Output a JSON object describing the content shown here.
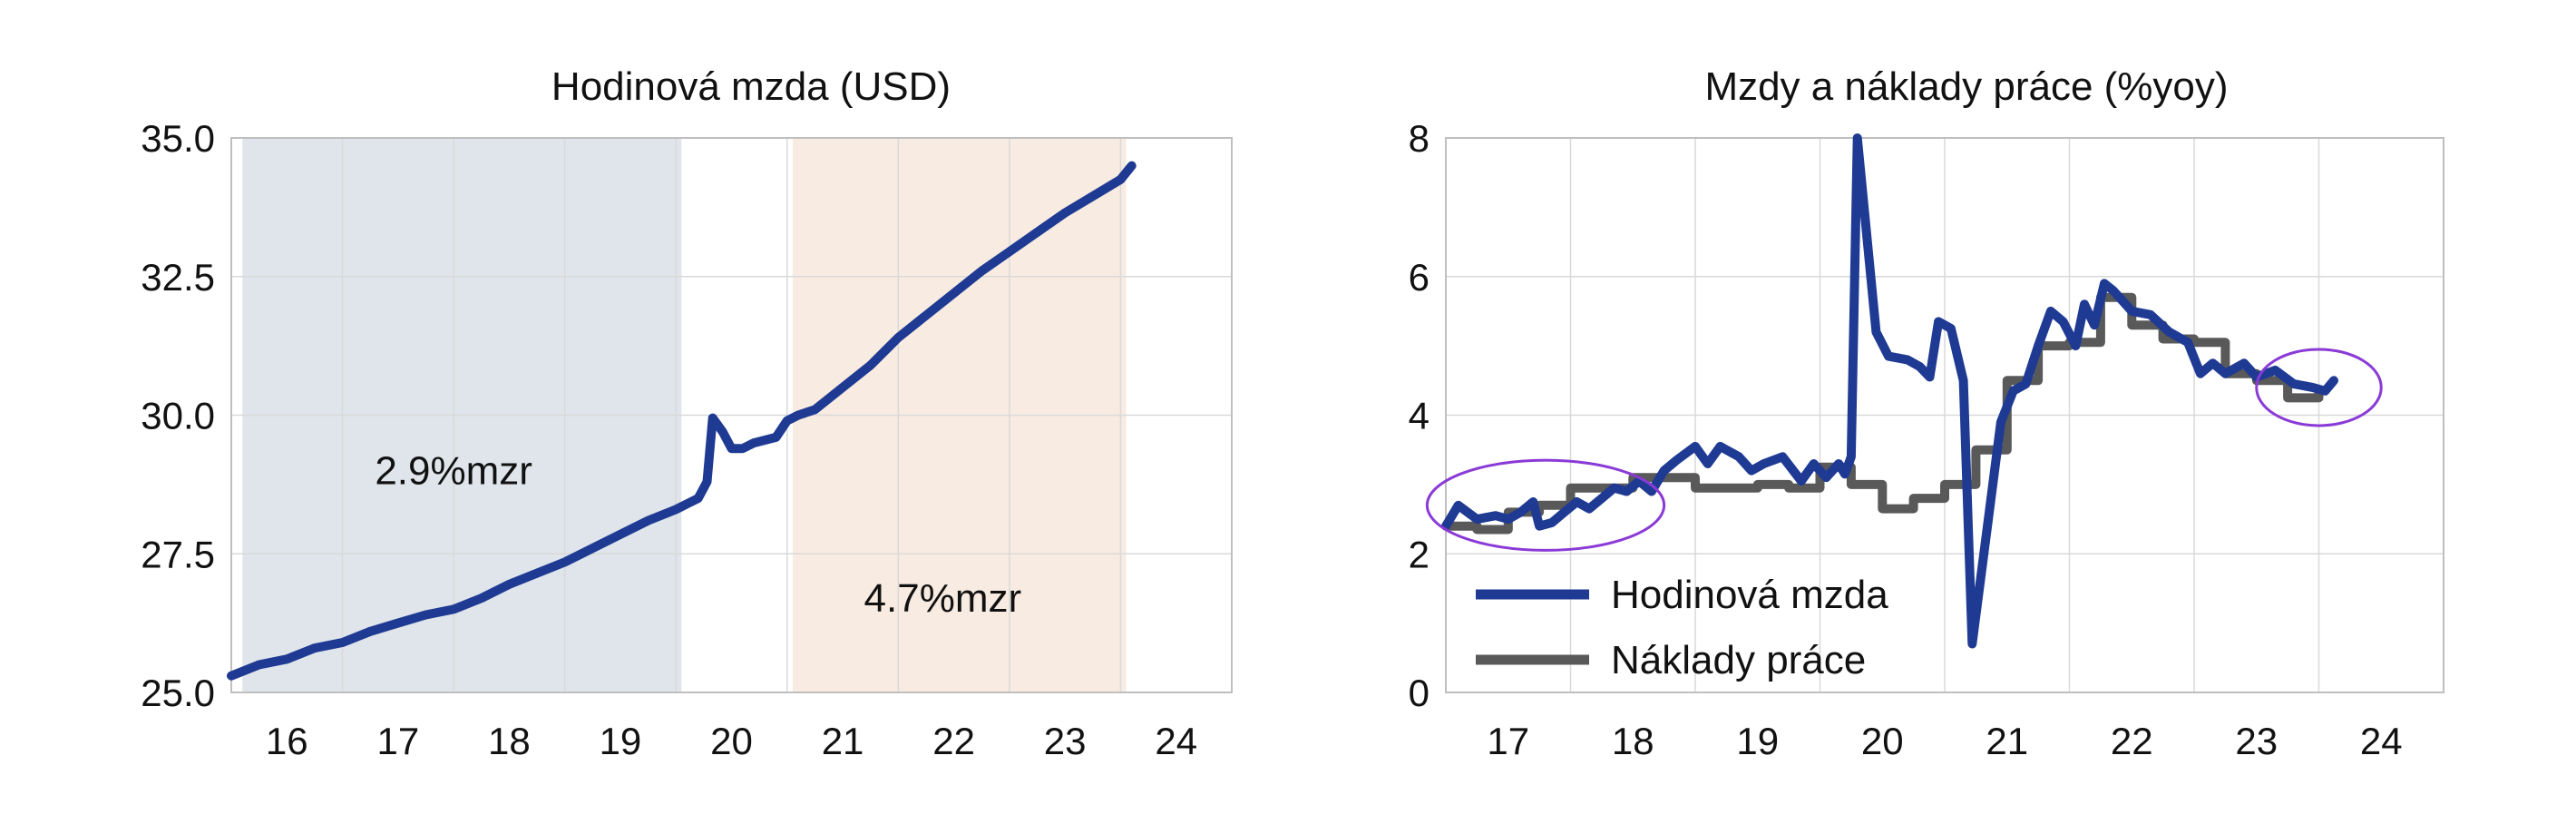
{
  "chart_data": [
    {
      "type": "line",
      "title": "Hodinová mzda (USD)",
      "xlabel": "",
      "ylabel": "",
      "xlim": [
        2015.5,
        2024.5
      ],
      "ylim": [
        25.0,
        35.0
      ],
      "yticks": [
        "25.0",
        "27.5",
        "30.0",
        "32.5",
        "35.0"
      ],
      "xticks": [
        {
          "label": "16",
          "x": 2016
        },
        {
          "label": "17",
          "x": 2017
        },
        {
          "label": "18",
          "x": 2018
        },
        {
          "label": "19",
          "x": 2019
        },
        {
          "label": "20",
          "x": 2020
        },
        {
          "label": "21",
          "x": 2021
        },
        {
          "label": "22",
          "x": 2022
        },
        {
          "label": "23",
          "x": 2023
        },
        {
          "label": "24",
          "x": 2024
        }
      ],
      "grid": true,
      "shaded_regions": [
        {
          "x0": 2015.6,
          "x1": 2019.55,
          "color": "#dfe5eb",
          "label": "2.9%mzr",
          "label_x": 2017.5,
          "label_y": 29.0
        },
        {
          "x0": 2020.55,
          "x1": 2023.55,
          "color": "#f8ebe1",
          "label": "4.7%mzr",
          "label_x": 2021.9,
          "label_y": 26.7
        }
      ],
      "series": [
        {
          "color": "#1f3a93",
          "points": [
            [
              2015.5,
              25.3
            ],
            [
              2015.75,
              25.5
            ],
            [
              2016.0,
              25.6
            ],
            [
              2016.25,
              25.8
            ],
            [
              2016.5,
              25.9
            ],
            [
              2016.75,
              26.1
            ],
            [
              2017.0,
              26.25
            ],
            [
              2017.25,
              26.4
            ],
            [
              2017.5,
              26.5
            ],
            [
              2017.75,
              26.7
            ],
            [
              2018.0,
              26.95
            ],
            [
              2018.25,
              27.15
            ],
            [
              2018.5,
              27.35
            ],
            [
              2018.75,
              27.6
            ],
            [
              2019.0,
              27.85
            ],
            [
              2019.25,
              28.1
            ],
            [
              2019.5,
              28.3
            ],
            [
              2019.7,
              28.5
            ],
            [
              2019.78,
              28.8
            ],
            [
              2019.83,
              29.95
            ],
            [
              2019.92,
              29.7
            ],
            [
              2020.0,
              29.4
            ],
            [
              2020.1,
              29.4
            ],
            [
              2020.2,
              29.5
            ],
            [
              2020.4,
              29.6
            ],
            [
              2020.5,
              29.9
            ],
            [
              2020.6,
              30.0
            ],
            [
              2020.75,
              30.1
            ],
            [
              2021.0,
              30.5
            ],
            [
              2021.25,
              30.9
            ],
            [
              2021.5,
              31.4
            ],
            [
              2021.75,
              31.8
            ],
            [
              2022.0,
              32.2
            ],
            [
              2022.25,
              32.6
            ],
            [
              2022.5,
              32.95
            ],
            [
              2022.75,
              33.3
            ],
            [
              2023.0,
              33.65
            ],
            [
              2023.25,
              33.95
            ],
            [
              2023.5,
              34.25
            ],
            [
              2023.6,
              34.5
            ]
          ]
        }
      ]
    },
    {
      "type": "line",
      "title": "Mzdy a náklady práce (%yoy)",
      "xlabel": "",
      "ylabel": "",
      "xlim": [
        2016.5,
        2024.5
      ],
      "ylim": [
        0,
        8
      ],
      "yticks": [
        "0",
        "2",
        "4",
        "6",
        "8"
      ],
      "xticks": [
        {
          "label": "17",
          "x": 2017
        },
        {
          "label": "18",
          "x": 2018
        },
        {
          "label": "19",
          "x": 2019
        },
        {
          "label": "20",
          "x": 2020
        },
        {
          "label": "21",
          "x": 2021
        },
        {
          "label": "22",
          "x": 2022
        },
        {
          "label": "23",
          "x": 2023
        },
        {
          "label": "24",
          "x": 2024
        }
      ],
      "grid": true,
      "legend_placement": "bottom-left",
      "highlights": [
        {
          "shape": "ellipse",
          "cx": 2017.3,
          "cy": 2.7,
          "rx": 0.95,
          "ry": 0.65,
          "color": "#8a3ad6"
        },
        {
          "shape": "ellipse",
          "cx": 2023.5,
          "cy": 4.4,
          "rx": 0.5,
          "ry": 0.55,
          "color": "#8a3ad6"
        }
      ],
      "series": [
        {
          "name": "Hodinová mzda",
          "color": "#1f3a93",
          "points": [
            [
              2016.5,
              2.4
            ],
            [
              2016.6,
              2.7
            ],
            [
              2016.75,
              2.5
            ],
            [
              2016.9,
              2.55
            ],
            [
              2017.0,
              2.5
            ],
            [
              2017.1,
              2.6
            ],
            [
              2017.2,
              2.75
            ],
            [
              2017.25,
              2.4
            ],
            [
              2017.35,
              2.45
            ],
            [
              2017.45,
              2.6
            ],
            [
              2017.55,
              2.75
            ],
            [
              2017.65,
              2.65
            ],
            [
              2017.75,
              2.8
            ],
            [
              2017.85,
              2.95
            ],
            [
              2017.95,
              2.9
            ],
            [
              2018.05,
              3.05
            ],
            [
              2018.15,
              2.9
            ],
            [
              2018.25,
              3.2
            ],
            [
              2018.35,
              3.35
            ],
            [
              2018.5,
              3.55
            ],
            [
              2018.6,
              3.3
            ],
            [
              2018.7,
              3.55
            ],
            [
              2018.85,
              3.4
            ],
            [
              2018.95,
              3.2
            ],
            [
              2019.05,
              3.3
            ],
            [
              2019.2,
              3.4
            ],
            [
              2019.35,
              3.05
            ],
            [
              2019.45,
              3.3
            ],
            [
              2019.55,
              3.1
            ],
            [
              2019.65,
              3.3
            ],
            [
              2019.7,
              3.15
            ],
            [
              2019.75,
              3.4
            ],
            [
              2019.8,
              8.0
            ],
            [
              2019.88,
              6.5
            ],
            [
              2019.95,
              5.2
            ],
            [
              2020.05,
              4.85
            ],
            [
              2020.2,
              4.8
            ],
            [
              2020.3,
              4.7
            ],
            [
              2020.38,
              4.55
            ],
            [
              2020.45,
              5.35
            ],
            [
              2020.55,
              5.25
            ],
            [
              2020.65,
              4.5
            ],
            [
              2020.72,
              0.7
            ],
            [
              2020.85,
              2.5
            ],
            [
              2020.95,
              3.9
            ],
            [
              2021.05,
              4.35
            ],
            [
              2021.15,
              4.45
            ],
            [
              2021.25,
              5.0
            ],
            [
              2021.35,
              5.5
            ],
            [
              2021.45,
              5.35
            ],
            [
              2021.55,
              5.0
            ],
            [
              2021.62,
              5.6
            ],
            [
              2021.7,
              5.3
            ],
            [
              2021.78,
              5.9
            ],
            [
              2021.85,
              5.8
            ],
            [
              2022.0,
              5.5
            ],
            [
              2022.15,
              5.45
            ],
            [
              2022.3,
              5.2
            ],
            [
              2022.45,
              5.05
            ],
            [
              2022.55,
              4.6
            ],
            [
              2022.65,
              4.75
            ],
            [
              2022.75,
              4.6
            ],
            [
              2022.9,
              4.75
            ],
            [
              2023.0,
              4.55
            ],
            [
              2023.15,
              4.65
            ],
            [
              2023.3,
              4.45
            ],
            [
              2023.45,
              4.4
            ],
            [
              2023.55,
              4.35
            ],
            [
              2023.62,
              4.5
            ]
          ]
        },
        {
          "name": "Náklady práce",
          "color": "#595959",
          "points": [
            [
              2016.5,
              2.4
            ],
            [
              2016.75,
              2.4
            ],
            [
              2016.75,
              2.35
            ],
            [
              2017.0,
              2.35
            ],
            [
              2017.0,
              2.6
            ],
            [
              2017.25,
              2.6
            ],
            [
              2017.25,
              2.7
            ],
            [
              2017.5,
              2.7
            ],
            [
              2017.5,
              2.95
            ],
            [
              2017.75,
              2.95
            ],
            [
              2017.75,
              2.95
            ],
            [
              2018.0,
              2.95
            ],
            [
              2018.0,
              3.1
            ],
            [
              2018.25,
              3.1
            ],
            [
              2018.25,
              3.1
            ],
            [
              2018.5,
              3.1
            ],
            [
              2018.5,
              2.95
            ],
            [
              2018.75,
              2.95
            ],
            [
              2018.75,
              2.95
            ],
            [
              2019.0,
              2.95
            ],
            [
              2019.0,
              3.0
            ],
            [
              2019.25,
              3.0
            ],
            [
              2019.25,
              2.95
            ],
            [
              2019.5,
              2.95
            ],
            [
              2019.5,
              3.25
            ],
            [
              2019.75,
              3.25
            ],
            [
              2019.75,
              3.0
            ],
            [
              2020.0,
              3.0
            ],
            [
              2020.0,
              2.65
            ],
            [
              2020.25,
              2.65
            ],
            [
              2020.25,
              2.8
            ],
            [
              2020.5,
              2.8
            ],
            [
              2020.5,
              3.0
            ],
            [
              2020.75,
              3.0
            ],
            [
              2020.75,
              3.5
            ],
            [
              2021.0,
              3.5
            ],
            [
              2021.0,
              4.5
            ],
            [
              2021.25,
              4.5
            ],
            [
              2021.25,
              5.0
            ],
            [
              2021.5,
              5.0
            ],
            [
              2021.5,
              5.05
            ],
            [
              2021.75,
              5.05
            ],
            [
              2021.75,
              5.7
            ],
            [
              2022.0,
              5.7
            ],
            [
              2022.0,
              5.3
            ],
            [
              2022.25,
              5.3
            ],
            [
              2022.25,
              5.1
            ],
            [
              2022.5,
              5.1
            ],
            [
              2022.5,
              5.05
            ],
            [
              2022.75,
              5.05
            ],
            [
              2022.75,
              4.6
            ],
            [
              2023.0,
              4.6
            ],
            [
              2023.0,
              4.5
            ],
            [
              2023.25,
              4.5
            ],
            [
              2023.25,
              4.25
            ],
            [
              2023.5,
              4.25
            ],
            [
              2023.5,
              4.35
            ]
          ]
        }
      ]
    }
  ]
}
